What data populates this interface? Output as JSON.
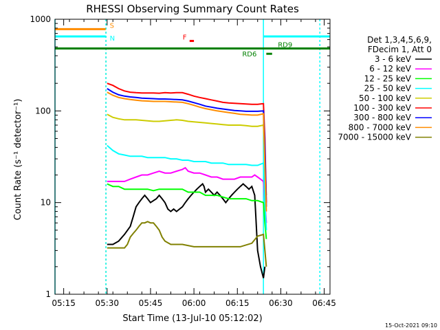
{
  "chart_data": {
    "type": "line",
    "title": "RHESSI Observing Summary Count Rates",
    "xlabel": "Start Time (13-Jul-10 05:12:02)",
    "ylabel": "Count Rate (s⁻¹ detector⁻¹)",
    "x_unit": "minutes after 05:12:02",
    "xlim": [
      0,
      95
    ],
    "ylim": [
      1,
      1000
    ],
    "yscale": "log",
    "y_ticks": [
      "1",
      "10",
      "100",
      "1000"
    ],
    "x_ticks": [
      {
        "t": 3,
        "label": "05:15"
      },
      {
        "t": 18,
        "label": "05:30"
      },
      {
        "t": 33,
        "label": "05:45"
      },
      {
        "t": 48,
        "label": "06:00"
      },
      {
        "t": 63,
        "label": "06:15"
      },
      {
        "t": 78,
        "label": "06:30"
      },
      {
        "t": 93,
        "label": "06:45"
      }
    ],
    "legend_header": [
      "Det 1,3,4,5,6,9,",
      "FDecim 1, Att 0"
    ],
    "legend_position": "right",
    "series": [
      {
        "name": "3 - 6 keV",
        "color": "#000000",
        "points": [
          [
            18,
            3.5
          ],
          [
            20,
            3.5
          ],
          [
            22,
            3.8
          ],
          [
            24,
            4.5
          ],
          [
            26,
            5.5
          ],
          [
            27,
            7
          ],
          [
            28,
            9
          ],
          [
            29,
            10
          ],
          [
            30,
            11
          ],
          [
            31,
            12
          ],
          [
            32,
            11
          ],
          [
            33,
            10
          ],
          [
            34,
            10.5
          ],
          [
            35,
            11
          ],
          [
            36,
            12
          ],
          [
            37,
            11
          ],
          [
            38,
            10
          ],
          [
            39,
            8.5
          ],
          [
            40,
            8
          ],
          [
            41,
            8.5
          ],
          [
            42,
            8
          ],
          [
            43,
            8.5
          ],
          [
            44,
            9
          ],
          [
            45,
            10
          ],
          [
            46,
            11
          ],
          [
            47,
            12
          ],
          [
            48,
            13
          ],
          [
            49,
            14
          ],
          [
            50,
            15
          ],
          [
            51,
            16
          ],
          [
            51.5,
            15
          ],
          [
            52,
            13
          ],
          [
            53,
            14
          ],
          [
            54,
            13
          ],
          [
            55,
            12
          ],
          [
            56,
            13
          ],
          [
            57,
            12
          ],
          [
            58,
            11
          ],
          [
            59,
            10
          ],
          [
            60,
            11
          ],
          [
            61,
            12
          ],
          [
            62,
            13
          ],
          [
            63,
            14
          ],
          [
            64,
            15
          ],
          [
            65,
            16
          ],
          [
            66,
            15
          ],
          [
            67,
            14
          ],
          [
            68,
            15
          ],
          [
            69,
            12
          ],
          [
            70,
            3
          ],
          [
            71,
            2
          ],
          [
            72,
            1.5
          ],
          [
            72.5,
            2
          ]
        ]
      },
      {
        "name": "6 - 12 keV",
        "color": "#ff00ff",
        "points": [
          [
            18,
            17
          ],
          [
            20,
            17
          ],
          [
            22,
            17
          ],
          [
            24,
            17
          ],
          [
            26,
            18
          ],
          [
            28,
            19
          ],
          [
            30,
            20
          ],
          [
            32,
            20
          ],
          [
            34,
            21
          ],
          [
            36,
            22
          ],
          [
            38,
            21
          ],
          [
            40,
            21
          ],
          [
            42,
            22
          ],
          [
            44,
            23
          ],
          [
            45,
            24
          ],
          [
            46,
            22
          ],
          [
            48,
            21
          ],
          [
            50,
            21
          ],
          [
            52,
            20
          ],
          [
            54,
            19
          ],
          [
            56,
            19
          ],
          [
            58,
            18
          ],
          [
            60,
            18
          ],
          [
            62,
            18
          ],
          [
            64,
            19
          ],
          [
            66,
            19
          ],
          [
            68,
            19
          ],
          [
            69,
            20
          ],
          [
            70,
            19
          ],
          [
            71,
            18
          ],
          [
            72,
            17
          ],
          [
            72.5,
            10
          ],
          [
            73,
            6
          ]
        ]
      },
      {
        "name": "12 - 25 keV",
        "color": "#00ff00",
        "points": [
          [
            18,
            16
          ],
          [
            20,
            15
          ],
          [
            22,
            15
          ],
          [
            24,
            14
          ],
          [
            26,
            14
          ],
          [
            28,
            14
          ],
          [
            30,
            14
          ],
          [
            32,
            14
          ],
          [
            34,
            13.5
          ],
          [
            36,
            14
          ],
          [
            38,
            14
          ],
          [
            40,
            14
          ],
          [
            42,
            14
          ],
          [
            44,
            14
          ],
          [
            46,
            13
          ],
          [
            48,
            13
          ],
          [
            50,
            13
          ],
          [
            52,
            12
          ],
          [
            54,
            12
          ],
          [
            56,
            12
          ],
          [
            58,
            11.5
          ],
          [
            60,
            11
          ],
          [
            62,
            11
          ],
          [
            64,
            11
          ],
          [
            66,
            11
          ],
          [
            68,
            10.5
          ],
          [
            70,
            10.5
          ],
          [
            72,
            10
          ],
          [
            72.5,
            6
          ],
          [
            73,
            4
          ]
        ]
      },
      {
        "name": "25 - 50 keV",
        "color": "#00ffff",
        "points": [
          [
            18,
            42
          ],
          [
            20,
            37
          ],
          [
            22,
            34
          ],
          [
            24,
            33
          ],
          [
            26,
            32
          ],
          [
            28,
            32
          ],
          [
            30,
            32
          ],
          [
            32,
            31
          ],
          [
            34,
            31
          ],
          [
            36,
            31
          ],
          [
            38,
            31
          ],
          [
            40,
            30
          ],
          [
            42,
            30
          ],
          [
            44,
            29
          ],
          [
            46,
            29
          ],
          [
            48,
            28
          ],
          [
            50,
            28
          ],
          [
            52,
            28
          ],
          [
            54,
            27
          ],
          [
            56,
            27
          ],
          [
            58,
            27
          ],
          [
            60,
            26
          ],
          [
            62,
            26
          ],
          [
            64,
            26
          ],
          [
            66,
            26
          ],
          [
            68,
            25.5
          ],
          [
            70,
            25.5
          ],
          [
            72,
            27
          ],
          [
            72.5,
            10
          ],
          [
            73,
            5
          ]
        ]
      },
      {
        "name": "50 - 100 keV",
        "color": "#cccc00",
        "points": [
          [
            18,
            92
          ],
          [
            20,
            85
          ],
          [
            22,
            82
          ],
          [
            24,
            80
          ],
          [
            26,
            80
          ],
          [
            28,
            80
          ],
          [
            30,
            79
          ],
          [
            32,
            78
          ],
          [
            34,
            77
          ],
          [
            36,
            77
          ],
          [
            38,
            78
          ],
          [
            40,
            79
          ],
          [
            42,
            80
          ],
          [
            44,
            79
          ],
          [
            46,
            77
          ],
          [
            48,
            76
          ],
          [
            50,
            75
          ],
          [
            52,
            74
          ],
          [
            54,
            73
          ],
          [
            56,
            72
          ],
          [
            58,
            71
          ],
          [
            60,
            70
          ],
          [
            62,
            70
          ],
          [
            64,
            70
          ],
          [
            66,
            69
          ],
          [
            68,
            68
          ],
          [
            70,
            68
          ],
          [
            72,
            70
          ],
          [
            72.5,
            30
          ],
          [
            73,
            12
          ]
        ]
      },
      {
        "name": "100 - 300 keV",
        "color": "#ff0000",
        "points": [
          [
            18,
            200
          ],
          [
            20,
            190
          ],
          [
            22,
            175
          ],
          [
            24,
            165
          ],
          [
            26,
            160
          ],
          [
            28,
            158
          ],
          [
            30,
            157
          ],
          [
            32,
            157
          ],
          [
            34,
            157
          ],
          [
            36,
            156
          ],
          [
            38,
            158
          ],
          [
            40,
            157
          ],
          [
            42,
            158
          ],
          [
            44,
            158
          ],
          [
            46,
            152
          ],
          [
            48,
            145
          ],
          [
            50,
            140
          ],
          [
            52,
            136
          ],
          [
            54,
            132
          ],
          [
            56,
            128
          ],
          [
            58,
            124
          ],
          [
            60,
            122
          ],
          [
            62,
            121
          ],
          [
            64,
            120
          ],
          [
            66,
            119
          ],
          [
            68,
            118
          ],
          [
            70,
            118
          ],
          [
            72,
            120
          ],
          [
            72.5,
            50
          ],
          [
            73,
            10
          ]
        ]
      },
      {
        "name": "300 - 800 keV",
        "color": "#0000ff",
        "points": [
          [
            18,
            175
          ],
          [
            20,
            160
          ],
          [
            22,
            150
          ],
          [
            24,
            145
          ],
          [
            26,
            142
          ],
          [
            28,
            140
          ],
          [
            30,
            138
          ],
          [
            32,
            137
          ],
          [
            34,
            136
          ],
          [
            36,
            135
          ],
          [
            38,
            135
          ],
          [
            40,
            134
          ],
          [
            42,
            133
          ],
          [
            44,
            132
          ],
          [
            46,
            128
          ],
          [
            48,
            123
          ],
          [
            50,
            118
          ],
          [
            52,
            113
          ],
          [
            54,
            110
          ],
          [
            56,
            107
          ],
          [
            58,
            105
          ],
          [
            60,
            103
          ],
          [
            62,
            101
          ],
          [
            64,
            100
          ],
          [
            66,
            99
          ],
          [
            68,
            99
          ],
          [
            70,
            99
          ],
          [
            72,
            100
          ],
          [
            72.5,
            40
          ],
          [
            73,
            9
          ]
        ]
      },
      {
        "name": "800 - 7000 keV",
        "color": "#ff8c00",
        "points": [
          [
            18,
            160
          ],
          [
            20,
            148
          ],
          [
            22,
            140
          ],
          [
            24,
            136
          ],
          [
            26,
            133
          ],
          [
            28,
            131
          ],
          [
            30,
            129
          ],
          [
            32,
            128
          ],
          [
            34,
            127
          ],
          [
            36,
            127
          ],
          [
            38,
            127
          ],
          [
            40,
            126
          ],
          [
            42,
            125
          ],
          [
            44,
            124
          ],
          [
            46,
            120
          ],
          [
            48,
            115
          ],
          [
            50,
            110
          ],
          [
            52,
            106
          ],
          [
            54,
            103
          ],
          [
            56,
            100
          ],
          [
            58,
            98
          ],
          [
            60,
            96
          ],
          [
            62,
            94
          ],
          [
            64,
            92
          ],
          [
            66,
            91
          ],
          [
            68,
            90
          ],
          [
            70,
            90
          ],
          [
            72,
            93
          ],
          [
            72.5,
            25
          ],
          [
            73,
            8
          ]
        ]
      },
      {
        "name": "7000 - 15000 keV",
        "color": "#808000",
        "points": [
          [
            18,
            3.2
          ],
          [
            20,
            3.2
          ],
          [
            22,
            3.2
          ],
          [
            24,
            3.2
          ],
          [
            25,
            3.5
          ],
          [
            26,
            4.2
          ],
          [
            27,
            4.6
          ],
          [
            28,
            5
          ],
          [
            29,
            5.5
          ],
          [
            30,
            6
          ],
          [
            31,
            6
          ],
          [
            32,
            6.2
          ],
          [
            33,
            6
          ],
          [
            34,
            6
          ],
          [
            35,
            5.5
          ],
          [
            36,
            5
          ],
          [
            37,
            4.2
          ],
          [
            38,
            3.8
          ],
          [
            40,
            3.5
          ],
          [
            44,
            3.5
          ],
          [
            48,
            3.3
          ],
          [
            52,
            3.3
          ],
          [
            56,
            3.3
          ],
          [
            60,
            3.3
          ],
          [
            64,
            3.3
          ],
          [
            68,
            3.6
          ],
          [
            70,
            4.3
          ],
          [
            72,
            4.5
          ],
          [
            72.5,
            3
          ],
          [
            73,
            2
          ]
        ]
      }
    ],
    "state_bars": [
      {
        "label": "S",
        "color": "#ff8c00",
        "x_start": 0,
        "x_end": 17.5,
        "y": 780
      },
      {
        "label": "N",
        "color": "#00ffff",
        "x_start": 0,
        "x_end": 17.5,
        "y": 650
      },
      {
        "label": "F",
        "color": "#ff0000",
        "x_start": 46.5,
        "x_end": 48,
        "y": 580
      },
      {
        "label": "RD9",
        "color": "#008000",
        "x_start": 0,
        "x_end": 95,
        "y": 480
      },
      {
        "label": "RD6",
        "color": "#008000",
        "x_start": 73,
        "x_end": 75,
        "y": 420
      },
      {
        "label": "",
        "color": "#00ffff",
        "x_start": 72,
        "x_end": 95,
        "y": 650
      }
    ],
    "vertical_markers": [
      {
        "t": 17.6,
        "color": "#ff8c00",
        "style": "dashed"
      },
      {
        "t": 17.6,
        "color": "#00ffff",
        "style": "dashed"
      },
      {
        "t": 0,
        "color": "#00ffff",
        "style": "solid"
      },
      {
        "t": 72,
        "color": "#00ffff",
        "style": "solid"
      },
      {
        "t": 91.5,
        "color": "#00ffff",
        "style": "dashed"
      }
    ],
    "timestamp": "15-Oct-2021 09:10"
  }
}
